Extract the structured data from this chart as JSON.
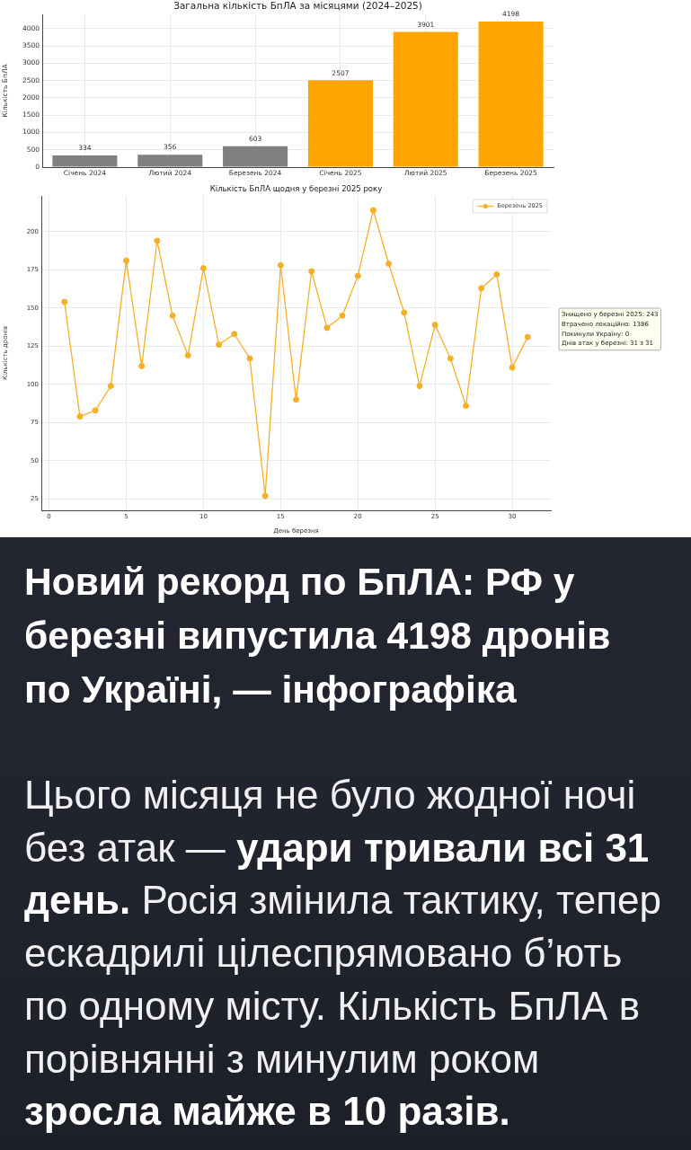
{
  "chart_data": [
    {
      "type": "bar",
      "title": "Загальна кількість БпЛА за місяцями (2024–2025)",
      "ylabel": "Кількість БпЛА",
      "categories": [
        "Січень 2024",
        "Лютий 2024",
        "Березень 2024",
        "Січень 2025",
        "Лютий 2025",
        "Березень 2025"
      ],
      "values": [
        334,
        356,
        603,
        2507,
        3901,
        4198
      ],
      "colors": [
        "#808080",
        "#808080",
        "#808080",
        "#ffa500",
        "#ffa500",
        "#ffa500"
      ],
      "ylim": [
        0,
        4408
      ],
      "yticks": [
        0,
        500,
        1000,
        1500,
        2000,
        2500,
        3000,
        3500,
        4000
      ],
      "grid": true,
      "data_labels": true
    },
    {
      "type": "line",
      "title": "Кількість БпЛА щодня у березні 2025 року",
      "xlabel": "День березня",
      "ylabel": "Кількість дронів",
      "x": [
        1,
        2,
        3,
        4,
        5,
        6,
        7,
        8,
        9,
        10,
        11,
        12,
        13,
        14,
        15,
        16,
        17,
        18,
        19,
        20,
        21,
        22,
        23,
        24,
        25,
        26,
        27,
        28,
        29,
        30,
        31
      ],
      "series": [
        {
          "name": "Березень 2025",
          "color": "#f5b027",
          "values": [
            154,
            79,
            83,
            99,
            181,
            112,
            194,
            145,
            119,
            176,
            126,
            133,
            117,
            27,
            178,
            90,
            174,
            137,
            145,
            171,
            214,
            179,
            147,
            99,
            139,
            117,
            86,
            163,
            172,
            111,
            131
          ]
        }
      ],
      "xlim": [
        -0.5,
        32.5
      ],
      "xticks": [
        0,
        5,
        10,
        15,
        20,
        25,
        30
      ],
      "ylim": [
        17.6,
        223.4
      ],
      "yticks": [
        25,
        50,
        75,
        100,
        125,
        150,
        175,
        200
      ],
      "grid": true,
      "legend": "top right",
      "marker": "circle",
      "line_style": "solid",
      "annotations": [
        "Знищено у березні 2025: 243",
        "Втрачено локаційно: 1386",
        "Покинули Україну: 0",
        "Днів атак у березні: 31 з 31"
      ]
    },
    {
      "type": "other",
      "title": "Новий рекорд по БпЛА: РФ у березні випустила 4198 дронів по Україні, — інфографіка",
      "annotations": [
        "Цього місяця не було жодної ночі",
        "без атак —",
        "удари тривали всі 31",
        "день.",
        "Росія змінила тактику, тепер",
        "ескадрилі цілеспрямовано б’ють по одному місту. Кількість БпЛА в порівнянні з минулим роком",
        "зросла майже в 10 разів."
      ]
    }
  ]
}
